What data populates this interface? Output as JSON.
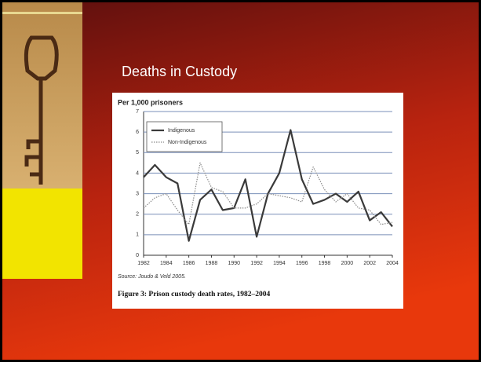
{
  "slide": {
    "title": "Deaths in Custody"
  },
  "chart_data": {
    "type": "line",
    "y_label": "Per 1,000 prisoners",
    "source": "Source: Joudo & Veld 2005.",
    "caption": "Figure 3: Prison custody death rates, 1982–2004",
    "x": [
      1982,
      1983,
      1984,
      1985,
      1986,
      1987,
      1988,
      1989,
      1990,
      1991,
      1992,
      1993,
      1994,
      1995,
      1996,
      1997,
      1998,
      1999,
      2000,
      2001,
      2002,
      2003,
      2004
    ],
    "series": [
      {
        "name": "Indigenous",
        "color": "#3a3a3a",
        "style": "solid",
        "values": [
          3.8,
          4.4,
          3.8,
          3.5,
          0.7,
          2.7,
          3.2,
          2.2,
          2.3,
          3.7,
          0.9,
          3.0,
          4.0,
          6.1,
          3.7,
          2.5,
          2.7,
          3.0,
          2.6,
          3.1,
          1.7,
          2.1,
          1.4
        ]
      },
      {
        "name": "Non-Indigenous",
        "color": "#8a8a8a",
        "style": "dotted",
        "values": [
          2.3,
          2.8,
          3.0,
          2.2,
          1.5,
          4.5,
          3.3,
          3.1,
          2.3,
          2.3,
          2.5,
          3.0,
          2.9,
          2.8,
          2.6,
          4.3,
          3.2,
          2.6,
          3.0,
          2.3,
          2.2,
          1.5,
          1.6
        ]
      }
    ],
    "xlim": [
      1982,
      2004
    ],
    "xticks": [
      1982,
      1984,
      1986,
      1988,
      1990,
      1992,
      1994,
      1996,
      1998,
      2000,
      2002,
      2004
    ],
    "ylim": [
      0,
      7
    ],
    "yticks": [
      0,
      1,
      2,
      3,
      4,
      5,
      6,
      7
    ],
    "grid": true,
    "legend": "top-left"
  }
}
